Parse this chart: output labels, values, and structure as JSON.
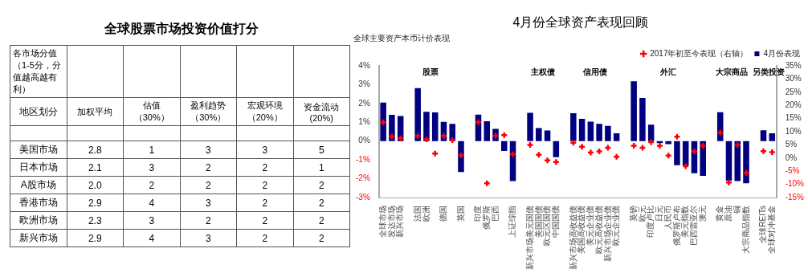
{
  "chart_data": [
    {
      "type": "other",
      "title": "全球股票市场投资价值打分",
      "annotations": [
        "各市场分值（1-5分，分值越高越有利）"
      ],
      "ylabel": "地区划分",
      "categories": [
        "加权平均",
        "估值（30%）",
        "盈利趋势（30%）",
        "宏观环境（20%）",
        "资金流动(20%)"
      ],
      "y_categories": [
        "美国市场",
        "日本市场",
        "A股市场",
        "香港市场",
        "欧洲市场",
        "新兴市场"
      ],
      "cell_labels": [
        [
          "2.8",
          "1",
          "3",
          "3",
          "5"
        ],
        [
          "2.1",
          "3",
          "2",
          "2",
          "1"
        ],
        [
          "2.0",
          "2",
          "2",
          "2",
          "2"
        ],
        [
          "2.9",
          "4",
          "3",
          "2",
          "2"
        ],
        [
          "2.3",
          "3",
          "2",
          "2",
          "2"
        ],
        [
          "2.9",
          "4",
          "3",
          "2",
          "2"
        ]
      ]
    },
    {
      "type": "bar",
      "title": "4月份全球资产表现回顾",
      "subtitle": "全球主要资产本币计价表现",
      "categories": [
        "全球市场",
        "发达市场",
        "新兴市场",
        null,
        "法国",
        "欧洲",
        null,
        "德国",
        null,
        "英国",
        null,
        "印度",
        "俄罗斯",
        "巴西",
        null,
        "上证综指",
        null,
        "新兴市场美元国债",
        "美国国债",
        "欧元区国债",
        "中国国债",
        null,
        "新兴市场高收益债",
        "美国高收益债",
        "美元企业债",
        "欧元高收益债",
        "新兴市场企业债",
        "欧元企业债",
        null,
        "英镑",
        "欧元",
        "印度卢比",
        "日元",
        "人民币",
        "俄罗斯卢布",
        "美元指数",
        "巴西雷亚尔",
        "澳元",
        null,
        "黄金",
        "原油",
        "铜",
        "大宗商品指数",
        null,
        "全球REITs",
        "全球对冲基金"
      ],
      "series": [
        {
          "name": "4月份表现",
          "type": "bar",
          "color": "#000080",
          "values": [
            2.05,
            1.4,
            1.33,
            null,
            2.82,
            1.56,
            1.52,
            1.02,
            0.92,
            -1.64,
            null,
            1.41,
            1.05,
            0.65,
            -0.52,
            -2.12,
            null,
            1.5,
            0.69,
            0.56,
            -0.85,
            null,
            1.48,
            1.18,
            1.03,
            0.92,
            0.81,
            0.41,
            null,
            3.18,
            2.29,
            0.87,
            -0.11,
            -0.16,
            -1.28,
            -1.29,
            -1.71,
            -1.85,
            null,
            1.54,
            -2.1,
            -2.12,
            -2.24,
            null,
            0.57,
            0.41
          ]
        },
        {
          "name": "2017年初至今表现（右轴）",
          "type": "scatter",
          "axis": "y2",
          "color": "#ff0000",
          "values": [
            13.6,
            8.2,
            7.5,
            null,
            8.4,
            7.1,
            1.7,
            8.4,
            6.8,
            1.0,
            null,
            13.6,
            -9.6,
            8.5,
            8.7,
            1.5,
            null,
            5.0,
            1.2,
            -0.9,
            -1.5,
            null,
            5.8,
            4.3,
            2.1,
            2.5,
            3.9,
            0.5,
            null,
            4.7,
            3.9,
            6.0,
            4.7,
            0.9,
            8.1,
            -3.1,
            2.5,
            4.7,
            null,
            9.6,
            -9.3,
            4.9,
            -5.6,
            null,
            2.6,
            2.2
          ]
        }
      ],
      "ylim": [
        -3,
        4
      ],
      "yticks": [
        {
          "value": -3,
          "label": "-3%"
        },
        {
          "value": -2,
          "label": "-2%"
        },
        {
          "value": -1,
          "label": "-1%"
        },
        {
          "value": 0,
          "label": "0%"
        },
        {
          "value": 1,
          "label": "1%"
        },
        {
          "value": 2,
          "label": "2%"
        },
        {
          "value": 3,
          "label": "3%"
        },
        {
          "value": 4,
          "label": "4%"
        }
      ],
      "y2lim": [
        -15,
        35
      ],
      "y2ticks": [
        {
          "value": -15,
          "label": "-15%"
        },
        {
          "value": -10,
          "label": "-10%"
        },
        {
          "value": -5,
          "label": "-5%"
        },
        {
          "value": 0,
          "label": "0%"
        },
        {
          "value": 5,
          "label": "5%"
        },
        {
          "value": 10,
          "label": "10%"
        },
        {
          "value": 15,
          "label": "15%"
        },
        {
          "value": 20,
          "label": "20%"
        },
        {
          "value": 25,
          "label": "25%"
        },
        {
          "value": 30,
          "label": "30%"
        },
        {
          "value": 35,
          "label": "35%"
        }
      ],
      "annotations": [
        "股票",
        "主权债",
        "信用债",
        "外汇",
        "大宗商品",
        "另类投资"
      ],
      "legend": "top right",
      "marker": "cross"
    }
  ]
}
